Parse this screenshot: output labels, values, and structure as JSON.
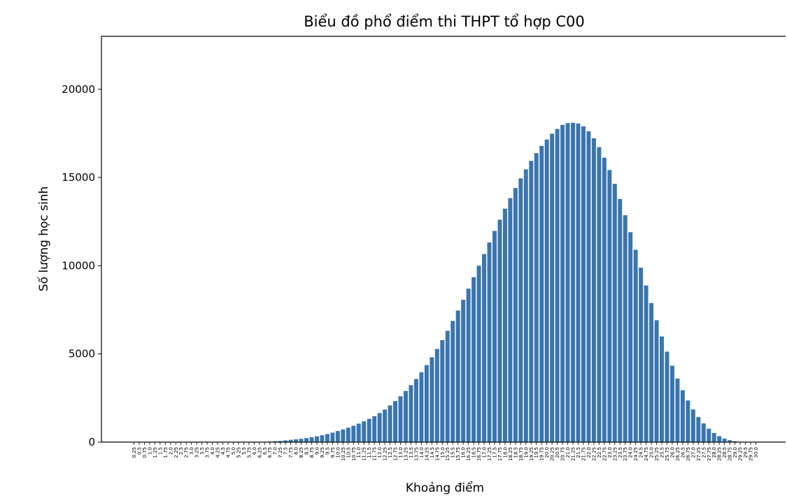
{
  "chart_data": {
    "type": "bar",
    "title": "Biểu đồ phổ điểm thi THPT tổ hợp C00",
    "xlabel": "Khoảng điểm",
    "ylabel": "Số lượng học sinh",
    "ylim": [
      0,
      23000
    ],
    "yticks": [
      "0",
      "5000",
      "10000",
      "15000",
      "20000"
    ],
    "grid": false,
    "bar_color": "#3a75af",
    "categories": [
      "0.25",
      "0.5",
      "0.75",
      "1.0",
      "1.25",
      "1.5",
      "1.75",
      "2.0",
      "2.25",
      "2.5",
      "2.75",
      "3.0",
      "3.25",
      "3.5",
      "3.75",
      "4.0",
      "4.25",
      "4.5",
      "4.75",
      "5.0",
      "5.25",
      "5.5",
      "5.75",
      "6.0",
      "6.25",
      "6.5",
      "6.75",
      "7.0",
      "7.25",
      "7.5",
      "7.75",
      "8.0",
      "8.25",
      "8.5",
      "8.75",
      "9.0",
      "9.25",
      "9.5",
      "9.75",
      "10.0",
      "10.25",
      "10.5",
      "10.75",
      "11.0",
      "11.25",
      "11.5",
      "11.75",
      "12.0",
      "12.25",
      "12.5",
      "12.75",
      "13.0",
      "13.25",
      "13.5",
      "13.75",
      "14.0",
      "14.25",
      "14.5",
      "14.75",
      "15.0",
      "15.25",
      "15.5",
      "15.75",
      "16.0",
      "16.25",
      "16.5",
      "16.75",
      "17.0",
      "17.25",
      "17.5",
      "17.75",
      "18.0",
      "18.25",
      "18.5",
      "18.75",
      "19.0",
      "19.25",
      "19.5",
      "19.75",
      "20.0",
      "20.25",
      "20.5",
      "20.75",
      "21.0",
      "21.25",
      "21.5",
      "21.75",
      "22.0",
      "22.25",
      "22.5",
      "22.75",
      "23.0",
      "23.25",
      "23.5",
      "23.75",
      "24.0",
      "24.25",
      "24.5",
      "24.75",
      "25.0",
      "25.25",
      "25.5",
      "25.75",
      "26.0",
      "26.25",
      "26.5",
      "26.75",
      "27.0",
      "27.25",
      "27.5",
      "27.75",
      "28.0",
      "28.25",
      "28.5",
      "28.75",
      "29.0",
      "29.25",
      "29.5",
      "29.75",
      "30.0"
    ],
    "values": [
      0,
      0,
      0,
      0,
      0,
      0,
      0,
      0,
      0,
      0,
      0,
      0,
      0,
      0,
      0,
      0,
      0,
      0,
      0,
      0,
      0,
      0,
      0,
      5,
      10,
      20,
      30,
      50,
      70,
      100,
      130,
      160,
      190,
      230,
      280,
      330,
      390,
      460,
      540,
      630,
      720,
      820,
      930,
      1050,
      1180,
      1320,
      1470,
      1650,
      1850,
      2080,
      2330,
      2600,
      2900,
      3230,
      3580,
      3960,
      4370,
      4810,
      5280,
      5780,
      6310,
      6870,
      7460,
      8070,
      8700,
      9350,
      10000,
      10660,
      11320,
      11970,
      12610,
      13230,
      13830,
      14400,
      14950,
      15460,
      15940,
      16380,
      16790,
      17150,
      17480,
      17750,
      17980,
      18080,
      18100,
      18060,
      17900,
      17620,
      17220,
      16720,
      16120,
      15420,
      14640,
      13780,
      12860,
      11900,
      10900,
      9890,
      8880,
      7880,
      6910,
      5990,
      5130,
      4330,
      3600,
      2940,
      2360,
      1850,
      1420,
      1060,
      760,
      520,
      340,
      200,
      110,
      50,
      20,
      8,
      3,
      1
    ]
  }
}
